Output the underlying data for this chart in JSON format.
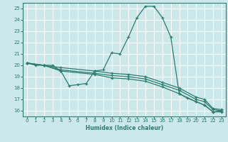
{
  "title": "",
  "xlabel": "Humidex (Indice chaleur)",
  "bg_color": "#cce8ea",
  "grid_color": "#ffffff",
  "line_color": "#2d7d6e",
  "xlim": [
    -0.5,
    23.5
  ],
  "ylim": [
    15.5,
    25.5
  ],
  "xticks": [
    0,
    1,
    2,
    3,
    4,
    5,
    6,
    7,
    8,
    9,
    10,
    11,
    12,
    13,
    14,
    15,
    16,
    17,
    18,
    19,
    20,
    21,
    22,
    23
  ],
  "yticks": [
    16,
    17,
    18,
    19,
    20,
    21,
    22,
    23,
    24,
    25
  ],
  "lines": [
    {
      "x": [
        0,
        1,
        2,
        3,
        4,
        5,
        6,
        7,
        8,
        9,
        10,
        11,
        12,
        13,
        14,
        15,
        16,
        17,
        18,
        19,
        20,
        21,
        22,
        23
      ],
      "y": [
        20.2,
        20.0,
        20.0,
        20.0,
        19.5,
        18.2,
        18.3,
        18.4,
        19.5,
        19.6,
        21.1,
        21.0,
        22.5,
        24.2,
        25.2,
        25.2,
        24.2,
        22.5,
        17.5,
        17.1,
        16.8,
        16.5,
        15.9,
        16.0
      ]
    },
    {
      "x": [
        0,
        2,
        4,
        8,
        10,
        12,
        14,
        16,
        18,
        20,
        21,
        22,
        23
      ],
      "y": [
        20.2,
        20.0,
        19.8,
        19.5,
        19.3,
        19.2,
        19.0,
        18.5,
        18.0,
        17.2,
        17.0,
        16.2,
        16.1
      ]
    },
    {
      "x": [
        0,
        2,
        4,
        8,
        10,
        12,
        14,
        16,
        18,
        20,
        21,
        22,
        23
      ],
      "y": [
        20.2,
        20.0,
        19.6,
        19.3,
        19.1,
        19.0,
        18.8,
        18.3,
        17.8,
        17.0,
        16.8,
        16.1,
        16.0
      ]
    },
    {
      "x": [
        0,
        2,
        4,
        8,
        10,
        12,
        14,
        16,
        18,
        20,
        21,
        22,
        23
      ],
      "y": [
        20.2,
        20.0,
        19.5,
        19.2,
        18.9,
        18.8,
        18.6,
        18.1,
        17.5,
        16.8,
        16.5,
        15.9,
        15.9
      ]
    }
  ]
}
